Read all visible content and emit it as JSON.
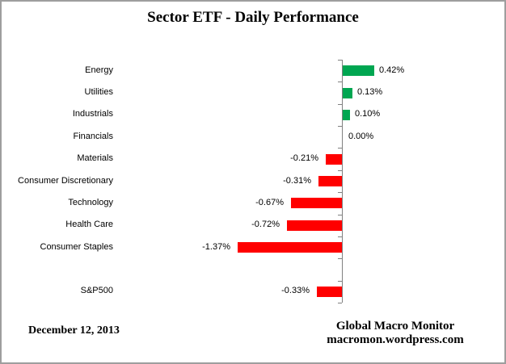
{
  "title": "Sector ETF - Daily Performance",
  "footer": {
    "date": "December 12, 2013",
    "attribution_line1": "Global Macro Monitor",
    "attribution_line2": "macromon.wordpress.com"
  },
  "colors": {
    "positive": "#00A651",
    "negative": "#FF0000",
    "axis": "#808080",
    "frame_border": "#9E9E9E",
    "text": "#000000"
  },
  "chart_data": {
    "type": "bar",
    "orientation": "horizontal",
    "title": "Sector ETF - Daily Performance",
    "unit": "%",
    "categories": [
      "Energy",
      "Utilities",
      "Industrials",
      "Financials",
      "Materials",
      "Consumer Discretionary",
      "Technology",
      "Health Care",
      "Consumer Staples",
      "",
      "S&P500"
    ],
    "values": [
      0.42,
      0.13,
      0.1,
      0.0,
      -0.21,
      -0.31,
      -0.67,
      -0.72,
      -1.37,
      null,
      -0.33
    ],
    "value_labels": [
      "0.42%",
      "0.13%",
      "0.10%",
      "0.00%",
      "-0.21%",
      "-0.31%",
      "-0.67%",
      "-0.72%",
      "-1.37%",
      "",
      "-0.33%"
    ],
    "baseline": 0,
    "value_axis": {
      "visible": false,
      "approx_range": [
        -1.6,
        0.6
      ]
    },
    "category_axis": {
      "visible": true,
      "ticks": true,
      "position": "zero"
    },
    "gridlines": false,
    "legend": false
  }
}
